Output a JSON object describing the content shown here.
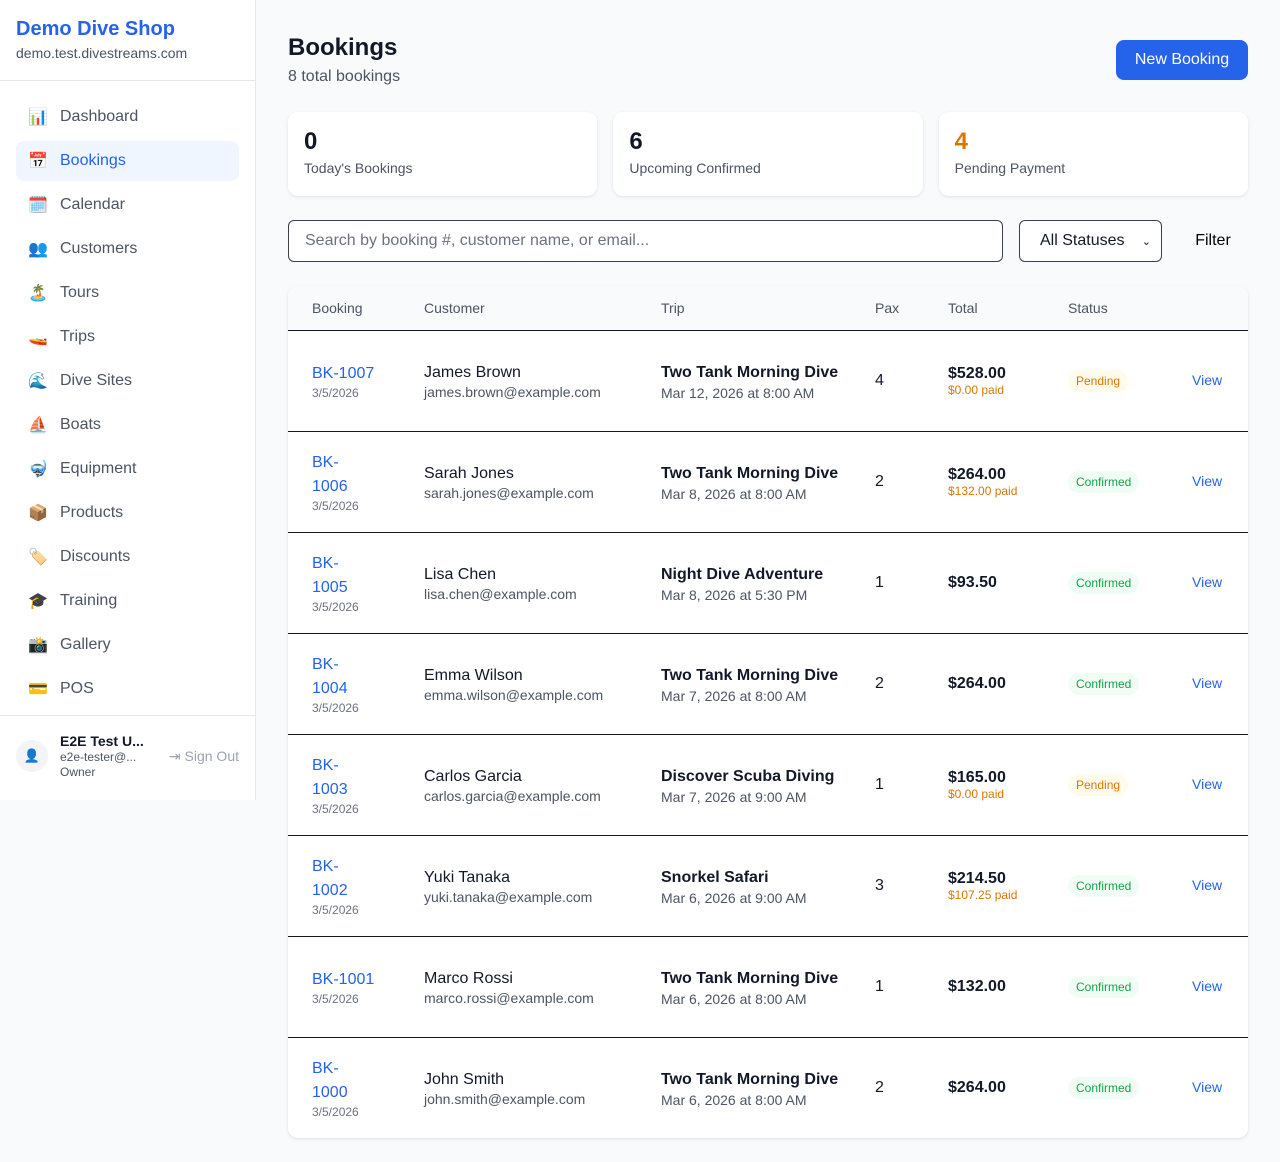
{
  "sidebar": {
    "shop_name": "Demo Dive Shop",
    "domain": "demo.test.divestreams.com",
    "items": [
      {
        "label": "Dashboard",
        "icon": "📊"
      },
      {
        "label": "Bookings",
        "icon": "📅",
        "active": true
      },
      {
        "label": "Calendar",
        "icon": "🗓️"
      },
      {
        "label": "Customers",
        "icon": "👥"
      },
      {
        "label": "Tours",
        "icon": "🏝️"
      },
      {
        "label": "Trips",
        "icon": "🚤"
      },
      {
        "label": "Dive Sites",
        "icon": "🌊"
      },
      {
        "label": "Boats",
        "icon": "⛵"
      },
      {
        "label": "Equipment",
        "icon": "🤿"
      },
      {
        "label": "Products",
        "icon": "📦"
      },
      {
        "label": "Discounts",
        "icon": "🏷️"
      },
      {
        "label": "Training",
        "icon": "🎓"
      },
      {
        "label": "Gallery",
        "icon": "📸"
      },
      {
        "label": "POS",
        "icon": "💳"
      }
    ],
    "user": {
      "name": "E2E Test U...",
      "email": "e2e-tester@...",
      "role": "Owner",
      "sign_out": "Sign Out"
    }
  },
  "header": {
    "title": "Bookings",
    "subtitle": "8 total bookings",
    "new_button": "New Booking"
  },
  "stats": [
    {
      "value": "0",
      "label": "Today's Bookings",
      "color": "#111827"
    },
    {
      "value": "6",
      "label": "Upcoming Confirmed",
      "color": "#111827"
    },
    {
      "value": "4",
      "label": "Pending Payment",
      "color": "#d97706"
    }
  ],
  "filters": {
    "search_placeholder": "Search by booking #, customer name, or email...",
    "status_value": "All Statuses",
    "filter_button": "Filter"
  },
  "table": {
    "columns": [
      "Booking",
      "Customer",
      "Trip",
      "Pax",
      "Total",
      "Status",
      ""
    ],
    "rows": [
      {
        "id": "BK-1007",
        "date": "3/5/2026",
        "name": "James Brown",
        "email": "james.brown@example.com",
        "trip": "Two Tank Morning Dive",
        "trip_date": "Mar 12, 2026 at 8:00 AM",
        "pax": "4",
        "total": "$528.00",
        "paid": "$0.00 paid",
        "status": "Pending",
        "action": "View"
      },
      {
        "id": "BK-1006",
        "date": "3/5/2026",
        "name": "Sarah Jones",
        "email": "sarah.jones@example.com",
        "trip": "Two Tank Morning Dive",
        "trip_date": "Mar 8, 2026 at 8:00 AM",
        "pax": "2",
        "total": "$264.00",
        "paid": "$132.00 paid",
        "status": "Confirmed",
        "action": "View"
      },
      {
        "id": "BK-1005",
        "date": "3/5/2026",
        "name": "Lisa Chen",
        "email": "lisa.chen@example.com",
        "trip": "Night Dive Adventure",
        "trip_date": "Mar 8, 2026 at 5:30 PM",
        "pax": "1",
        "total": "$93.50",
        "paid": "",
        "status": "Confirmed",
        "action": "View"
      },
      {
        "id": "BK-1004",
        "date": "3/5/2026",
        "name": "Emma Wilson",
        "email": "emma.wilson@example.com",
        "trip": "Two Tank Morning Dive",
        "trip_date": "Mar 7, 2026 at 8:00 AM",
        "pax": "2",
        "total": "$264.00",
        "paid": "",
        "status": "Confirmed",
        "action": "View"
      },
      {
        "id": "BK-1003",
        "date": "3/5/2026",
        "name": "Carlos Garcia",
        "email": "carlos.garcia@example.com",
        "trip": "Discover Scuba Diving",
        "trip_date": "Mar 7, 2026 at 9:00 AM",
        "pax": "1",
        "total": "$165.00",
        "paid": "$0.00 paid",
        "status": "Pending",
        "action": "View"
      },
      {
        "id": "BK-1002",
        "date": "3/5/2026",
        "name": "Yuki Tanaka",
        "email": "yuki.tanaka@example.com",
        "trip": "Snorkel Safari",
        "trip_date": "Mar 6, 2026 at 9:00 AM",
        "pax": "3",
        "total": "$214.50",
        "paid": "$107.25 paid",
        "status": "Confirmed",
        "action": "View"
      },
      {
        "id": "BK-1001",
        "date": "3/5/2026",
        "name": "Marco Rossi",
        "email": "marco.rossi@example.com",
        "trip": "Two Tank Morning Dive",
        "trip_date": "Mar 6, 2026 at 8:00 AM",
        "pax": "1",
        "total": "$132.00",
        "paid": "",
        "status": "Confirmed",
        "action": "View"
      },
      {
        "id": "BK-1000",
        "date": "3/5/2026",
        "name": "John Smith",
        "email": "john.smith@example.com",
        "trip": "Two Tank Morning Dive",
        "trip_date": "Mar 6, 2026 at 8:00 AM",
        "pax": "2",
        "total": "$264.00",
        "paid": "",
        "status": "Confirmed",
        "action": "View"
      }
    ]
  }
}
